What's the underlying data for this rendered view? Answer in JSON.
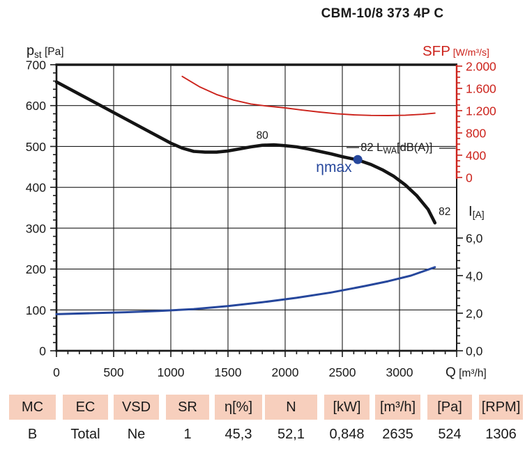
{
  "title": "CBM-10/8 373 4P C",
  "colors": {
    "red": "#cc231c",
    "blue": "#26479c",
    "curve_black": "#141414",
    "grid": "#1a1a1a",
    "table_header_bg": "#f7cfbd",
    "text": "#1a1a1a"
  },
  "chart_data": {
    "type": "line",
    "title": "CBM-10/8 373 4P C",
    "grid": "on",
    "x_axis": {
      "label_main": "Q",
      "label_unit": " [m³/h]",
      "min": 0,
      "max": 3500,
      "major_tick_step": 500,
      "minor_tick_step": 100,
      "tick_labels": [
        0,
        500,
        1000,
        1500,
        2000,
        2500,
        3000
      ]
    },
    "y_left_axis": {
      "label_main": "p",
      "label_sub": "st",
      "label_unit": " [Pa]",
      "min": 0,
      "max": 700,
      "major_tick_step": 100,
      "minor_tick_step": 20,
      "tick_labels": [
        700,
        600,
        500,
        400,
        300,
        200,
        100,
        0
      ]
    },
    "y_right_sfp_axis": {
      "label_main": "SFP",
      "label_unit": " [W/m³/s]",
      "min": 0,
      "max": 2000,
      "major_tick_step": 400,
      "minor_tick_step": 100,
      "ticks": [
        {
          "value": 2000,
          "label": "2.000"
        },
        {
          "value": 1600,
          "label": "1.600"
        },
        {
          "value": 1200,
          "label": "1.200"
        },
        {
          "value": 800,
          "label": "800"
        },
        {
          "value": 400,
          "label": "400"
        },
        {
          "value": 0,
          "label": "0"
        }
      ]
    },
    "y_right_current_axis": {
      "label_main": "I",
      "label_sub": "[A]",
      "min": 0,
      "max": 6,
      "major_tick_step": 2,
      "minor_tick_step": 0.4,
      "ticks": [
        {
          "value": 6,
          "label": "6,0"
        },
        {
          "value": 4,
          "label": "4,0"
        },
        {
          "value": 2,
          "label": "2,0"
        },
        {
          "value": 0,
          "label": "0,0"
        }
      ]
    },
    "series": [
      {
        "name": "static-pressure-curve",
        "axis": "pa",
        "color_key": "curve_black",
        "width": 4.6,
        "points": [
          [
            0,
            658
          ],
          [
            200,
            628
          ],
          [
            400,
            598
          ],
          [
            600,
            568
          ],
          [
            800,
            538
          ],
          [
            1000,
            508
          ],
          [
            1100,
            496
          ],
          [
            1200,
            488
          ],
          [
            1300,
            486
          ],
          [
            1400,
            486
          ],
          [
            1500,
            489
          ],
          [
            1600,
            494
          ],
          [
            1700,
            499
          ],
          [
            1800,
            503
          ],
          [
            1900,
            504
          ],
          [
            2000,
            502
          ],
          [
            2100,
            499
          ],
          [
            2200,
            494
          ],
          [
            2300,
            488
          ],
          [
            2400,
            482
          ],
          [
            2500,
            475
          ],
          [
            2635,
            467
          ],
          [
            2750,
            456
          ],
          [
            2850,
            443
          ],
          [
            2950,
            427
          ],
          [
            3050,
            406
          ],
          [
            3150,
            380
          ],
          [
            3250,
            346
          ],
          [
            3310,
            313
          ]
        ]
      },
      {
        "name": "sfp-curve",
        "axis": "sfp",
        "color_key": "red",
        "width": 1.9,
        "points": [
          [
            1100,
            1815
          ],
          [
            1250,
            1630
          ],
          [
            1400,
            1490
          ],
          [
            1550,
            1390
          ],
          [
            1700,
            1320
          ],
          [
            1850,
            1280
          ],
          [
            2000,
            1250
          ],
          [
            2150,
            1210
          ],
          [
            2300,
            1175
          ],
          [
            2450,
            1145
          ],
          [
            2600,
            1125
          ],
          [
            2750,
            1115
          ],
          [
            2900,
            1112
          ],
          [
            3050,
            1118
          ],
          [
            3200,
            1135
          ],
          [
            3310,
            1155
          ]
        ]
      },
      {
        "name": "current-curve",
        "axis": "current",
        "color_key": "blue",
        "width": 3,
        "points": [
          [
            0,
            1.95
          ],
          [
            300,
            2.0
          ],
          [
            600,
            2.05
          ],
          [
            900,
            2.12
          ],
          [
            1200,
            2.22
          ],
          [
            1500,
            2.38
          ],
          [
            1800,
            2.58
          ],
          [
            2100,
            2.82
          ],
          [
            2400,
            3.1
          ],
          [
            2700,
            3.45
          ],
          [
            2900,
            3.7
          ],
          [
            3100,
            4.0
          ],
          [
            3310,
            4.45
          ]
        ]
      }
    ],
    "annotations": {
      "noise_label_mid": {
        "text": "80",
        "q": 1800,
        "pa": 519
      },
      "lwa_label": {
        "text_pre": "82 L",
        "text_sub": "WA",
        "text_post": "[dB(A)]",
        "q": 2660,
        "pa": 489
      },
      "noise_label_end": {
        "text": "82",
        "q": 3395,
        "pa": 332
      },
      "eta_max_label": {
        "text": "ηmax",
        "q": 2270,
        "pa": 438
      },
      "eta_max_point": {
        "q": 2635,
        "pa": 468
      }
    }
  },
  "table": {
    "headers": [
      "MC",
      "EC",
      "VSD",
      "SR",
      "η[%]",
      "N",
      "[kW]",
      "[m³/h]",
      "[Pa]",
      "[RPM]"
    ],
    "values": [
      "B",
      "Total",
      "Ne",
      "1",
      "45,3",
      "52,1",
      "0,848",
      "2635",
      "524",
      "1306"
    ]
  }
}
